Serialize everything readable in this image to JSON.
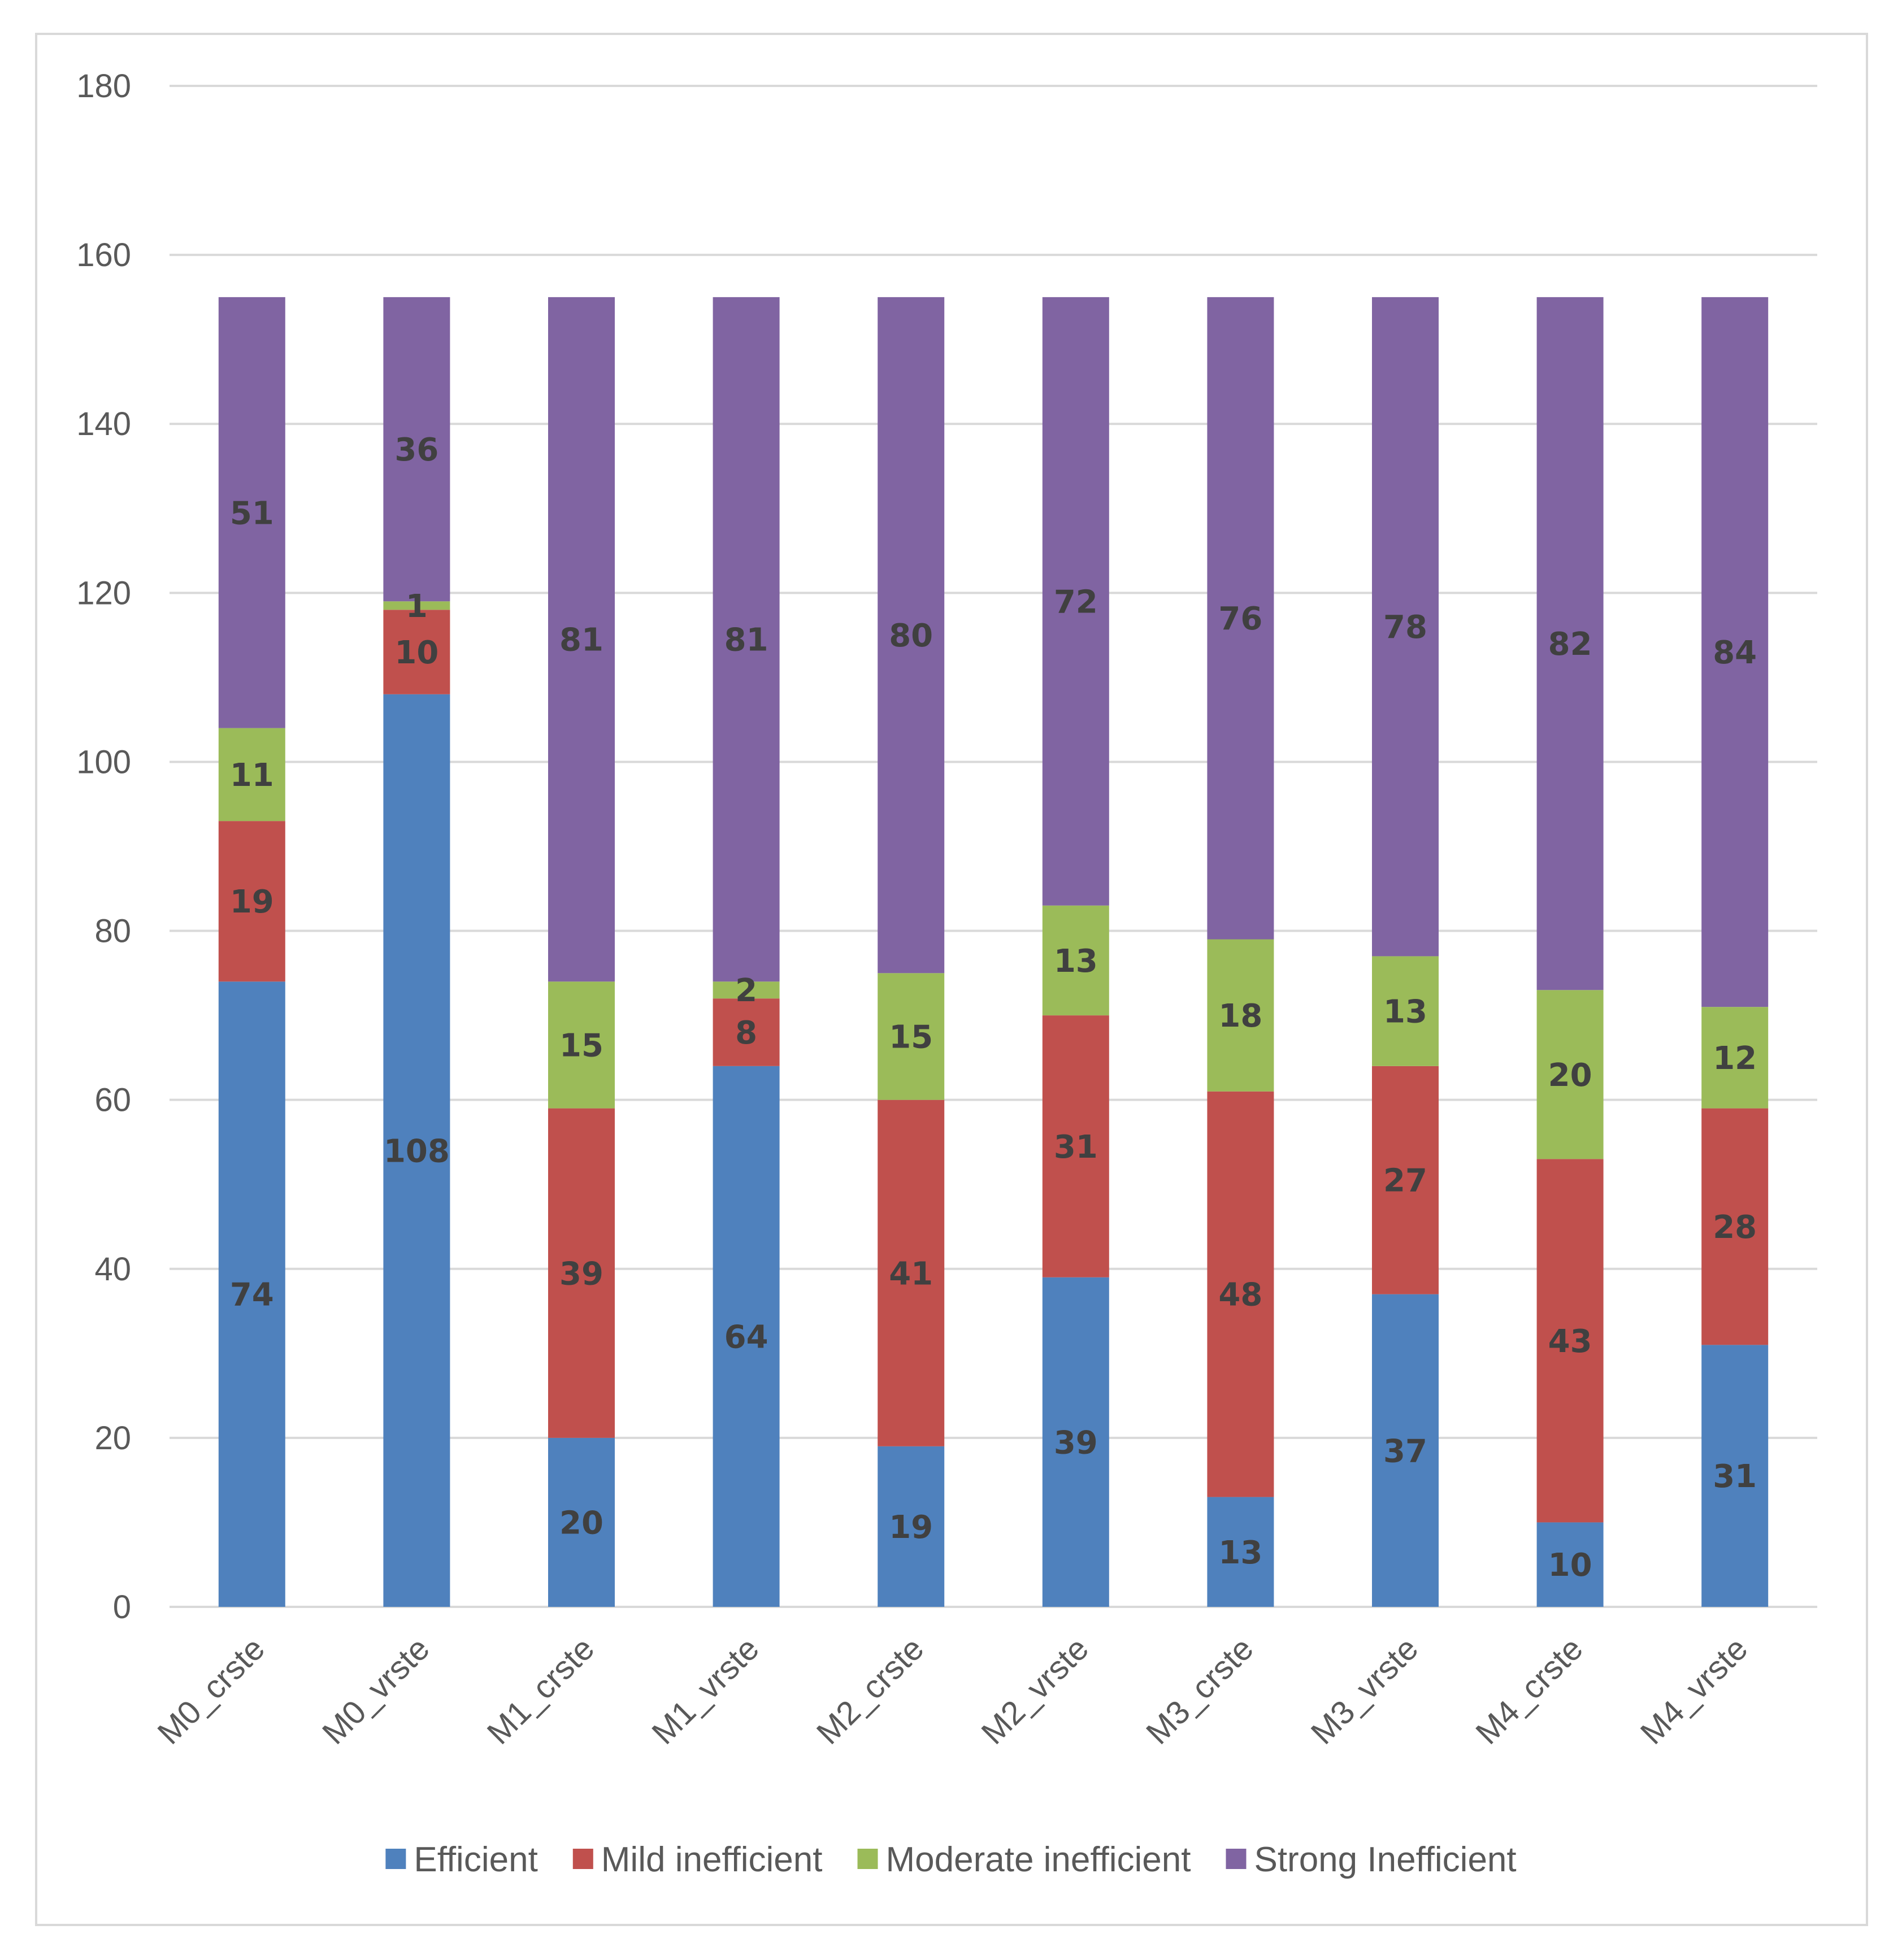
{
  "chart_data": {
    "type": "bar",
    "stacked": true,
    "title": "",
    "xlabel": "",
    "ylabel": "",
    "ylim": [
      0,
      180
    ],
    "yticks": [
      0,
      20,
      40,
      60,
      80,
      100,
      120,
      140,
      160,
      180
    ],
    "grid": true,
    "legend_position": "bottom",
    "categories": [
      "M0_crste",
      "M0_vrste",
      "M1_crste",
      "M1_vrste",
      "M2_crste",
      "M2_vrste",
      "M3_crste",
      "M3_vrste",
      "M4_crste",
      "M4_vrste"
    ],
    "series": [
      {
        "name": "Efficient",
        "color": "#4f81bd",
        "values": [
          74,
          108,
          20,
          64,
          19,
          39,
          13,
          37,
          10,
          31
        ]
      },
      {
        "name": "Mild inefficient",
        "color": "#c0504d",
        "values": [
          19,
          10,
          39,
          8,
          41,
          31,
          48,
          27,
          43,
          28
        ]
      },
      {
        "name": "Moderate inefficient",
        "color": "#9bbb59",
        "values": [
          11,
          1,
          15,
          2,
          15,
          13,
          18,
          13,
          20,
          12
        ]
      },
      {
        "name": "Strong Inefficient",
        "color": "#8064a2",
        "values": [
          51,
          36,
          81,
          81,
          80,
          72,
          76,
          78,
          82,
          84
        ]
      }
    ]
  }
}
